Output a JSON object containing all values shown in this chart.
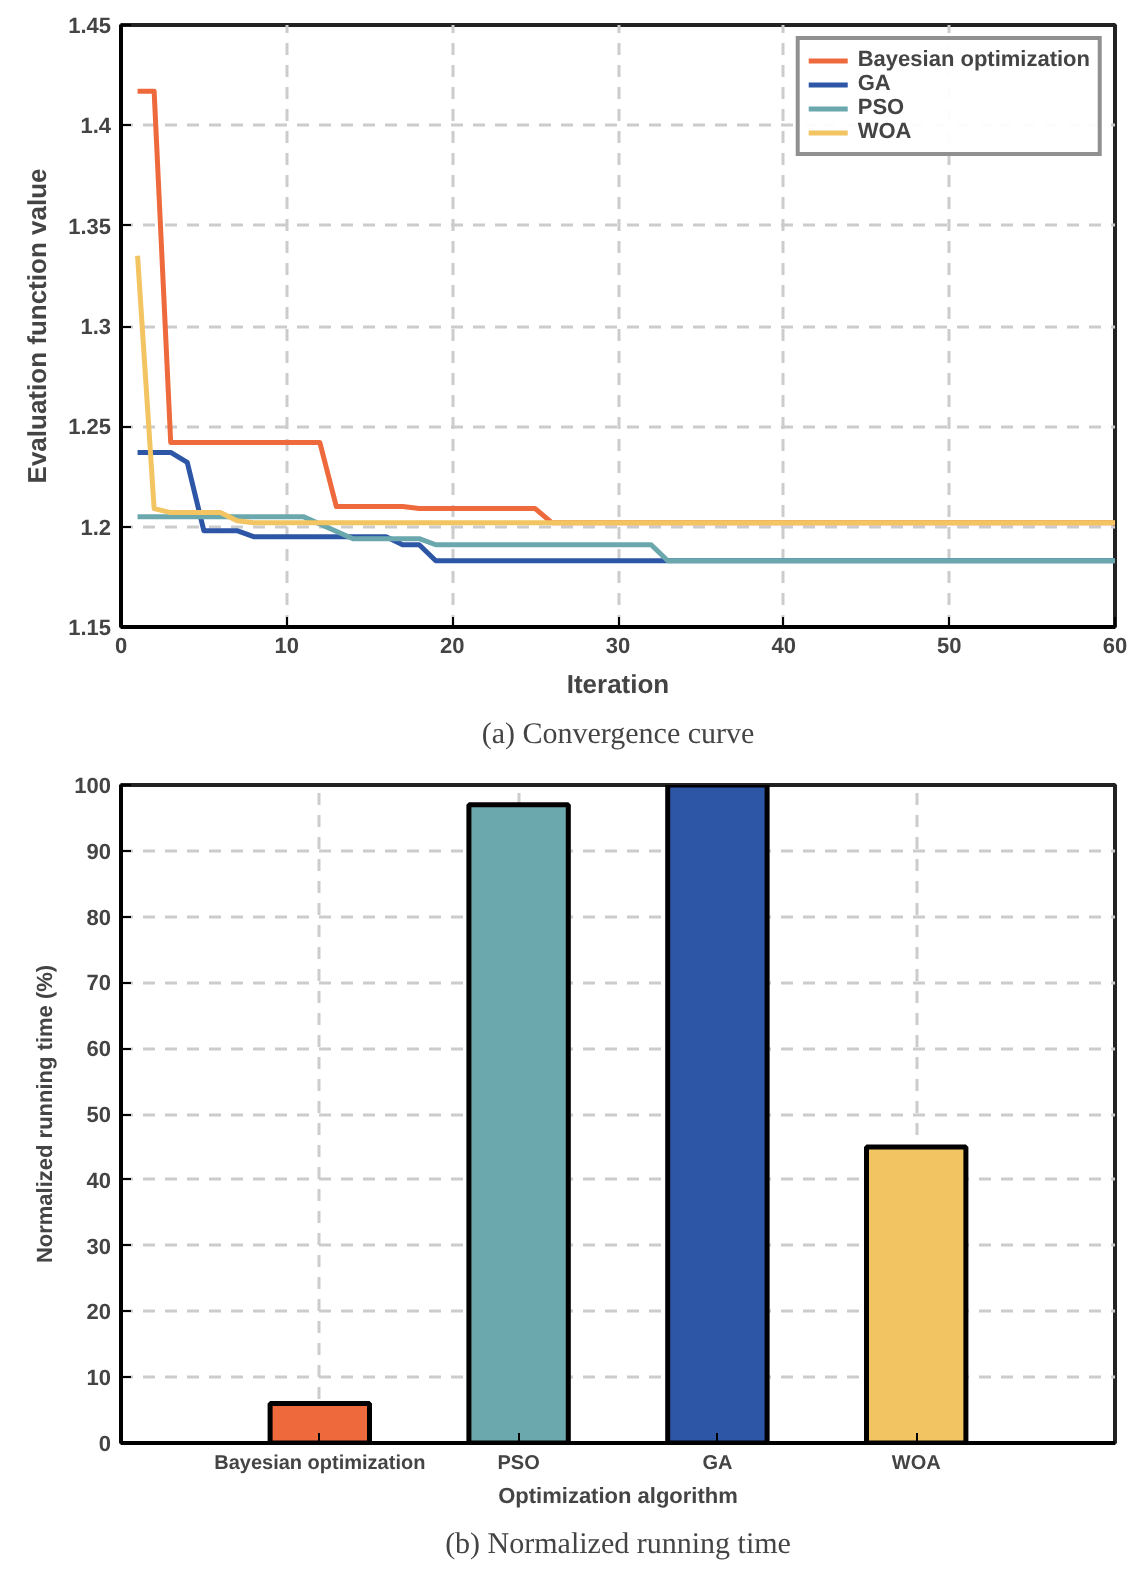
{
  "chart_data": [
    {
      "type": "line",
      "title": "(a) Convergence curve",
      "xlabel": "Iteration",
      "ylabel": "Evaluation function value",
      "xlim": [
        0,
        60
      ],
      "ylim": [
        1.15,
        1.45
      ],
      "xticks": [
        0,
        10,
        20,
        30,
        40,
        50,
        60
      ],
      "yticks": [
        1.15,
        1.2,
        1.25,
        1.3,
        1.35,
        1.4,
        1.45
      ],
      "grid": true,
      "legend": "top right",
      "marker": "none",
      "line_style": "solid",
      "series": [
        {
          "name": "Bayesian optimization",
          "color": "#ee6a3c",
          "x": [
            1,
            2,
            3,
            12,
            13,
            17,
            18,
            25,
            26,
            60
          ],
          "values": [
            1.417,
            1.417,
            1.242,
            1.242,
            1.21,
            1.21,
            1.209,
            1.209,
            1.202,
            1.202
          ]
        },
        {
          "name": "GA",
          "color": "#2d56a6",
          "x": [
            1,
            3,
            4,
            5,
            7,
            8,
            16,
            17,
            18,
            19,
            60
          ],
          "values": [
            1.237,
            1.237,
            1.232,
            1.198,
            1.198,
            1.195,
            1.195,
            1.191,
            1.191,
            1.183,
            1.183
          ]
        },
        {
          "name": "PSO",
          "color": "#6aa8ae",
          "x": [
            1,
            11,
            14,
            18,
            19,
            32,
            33,
            60
          ],
          "values": [
            1.205,
            1.205,
            1.194,
            1.194,
            1.191,
            1.191,
            1.183,
            1.183
          ]
        },
        {
          "name": "WOA",
          "color": "#f2c462",
          "x": [
            1,
            2,
            3,
            6,
            7,
            8,
            60
          ],
          "values": [
            1.335,
            1.209,
            1.207,
            1.207,
            1.203,
            1.202,
            1.202
          ]
        }
      ]
    },
    {
      "type": "bar",
      "title": "(b) Normalized running time",
      "xlabel": "Optimization algorithm",
      "ylabel": "Normalized running time (%)",
      "categories": [
        "Bayesian optimization",
        "PSO",
        "GA",
        "WOA"
      ],
      "values": [
        6,
        97,
        100,
        45
      ],
      "colors": [
        "#ee6a3c",
        "#6aa8ae",
        "#2d56a6",
        "#f2c462"
      ],
      "ylim": [
        0,
        100
      ],
      "yticks": [
        0,
        10,
        20,
        30,
        40,
        50,
        60,
        70,
        80,
        90,
        100
      ],
      "grid": true
    }
  ]
}
